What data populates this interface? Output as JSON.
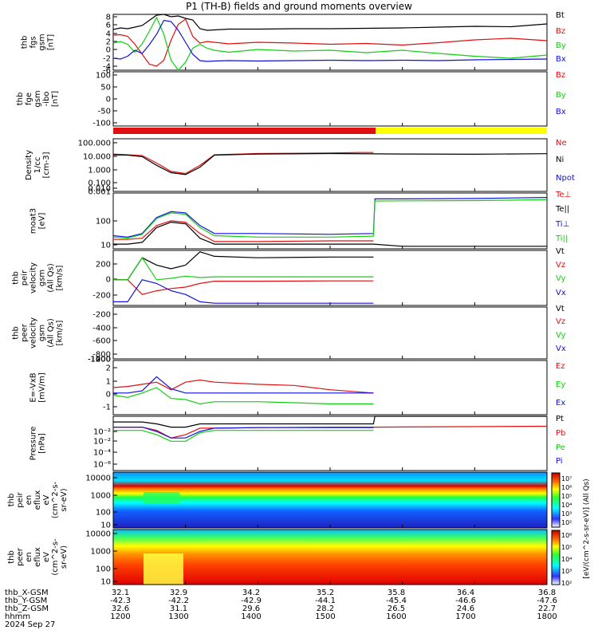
{
  "title": "P1 (TH-B) fields and ground moments overview",
  "colors": {
    "black": "#000000",
    "red": "#e01010",
    "green": "#10d010",
    "blue": "#1010e0",
    "yellow": "#ffff00"
  },
  "chart_data": [
    {
      "type": "line",
      "ylabel": [
        "thb",
        "fgs",
        "gsm",
        "[nT]"
      ],
      "ylim": [
        -6,
        8
      ],
      "ticks": [
        "8",
        "6",
        "4",
        "2",
        "0",
        "-2",
        "-4",
        "-6"
      ],
      "legend": [
        {
          "name": "Bt",
          "color": "#000000"
        },
        {
          "name": "Bz",
          "color": "#e01010"
        },
        {
          "name": "By",
          "color": "#10d010"
        },
        {
          "name": "Bx",
          "color": "#1010e0"
        }
      ],
      "series": [
        {
          "name": "Bt",
          "x": [
            1200,
            1210,
            1220,
            1230,
            1240,
            1250,
            1260,
            1270,
            1280,
            1290,
            1300,
            1310,
            1320,
            1330,
            1340,
            1360,
            1400,
            1450,
            1500,
            1550,
            1600,
            1650,
            1700,
            1750,
            1800
          ],
          "y": [
            4.2,
            4.6,
            4.4,
            4.8,
            5.2,
            6.5,
            7.8,
            8.0,
            7.4,
            7.6,
            7.0,
            6.6,
            4.4,
            4.0,
            4.1,
            4.3,
            4.3,
            4.4,
            4.4,
            4.5,
            4.6,
            4.8,
            5.0,
            4.9,
            5.6
          ]
        },
        {
          "name": "Bz",
          "x": [
            1200,
            1210,
            1220,
            1230,
            1240,
            1250,
            1260,
            1270,
            1280,
            1290,
            1300,
            1310,
            1320,
            1330,
            1340,
            1360,
            1400,
            1450,
            1500,
            1550,
            1600,
            1650,
            1700,
            1750,
            1800
          ],
          "y": [
            2.8,
            2.9,
            2.5,
            0.5,
            -2.0,
            -4.5,
            -5.0,
            -3.5,
            1.5,
            5.5,
            6.8,
            2.5,
            0.8,
            1.2,
            1.0,
            0.6,
            1.0,
            0.8,
            0.5,
            0.7,
            0.3,
            0.9,
            1.6,
            2.0,
            1.4
          ]
        },
        {
          "name": "By",
          "x": [
            1200,
            1210,
            1220,
            1230,
            1240,
            1250,
            1260,
            1270,
            1280,
            1290,
            1300,
            1310,
            1320,
            1330,
            1340,
            1360,
            1400,
            1450,
            1500,
            1550,
            1600,
            1650,
            1700,
            1750,
            1800
          ],
          "y": [
            0.8,
            1.2,
            0.5,
            -1.5,
            0.6,
            3.8,
            7.2,
            3.0,
            -3.5,
            -6.0,
            -4.0,
            -0.5,
            0.5,
            -0.5,
            -1.0,
            -1.5,
            -0.8,
            -1.2,
            -1.0,
            -1.6,
            -1.0,
            -1.8,
            -2.5,
            -3.0,
            -2.2
          ]
        },
        {
          "name": "Bx",
          "x": [
            1200,
            1210,
            1220,
            1230,
            1240,
            1250,
            1260,
            1270,
            1280,
            1290,
            1300,
            1310,
            1320,
            1330,
            1340,
            1360,
            1400,
            1450,
            1500,
            1550,
            1600,
            1650,
            1700,
            1750,
            1800
          ],
          "y": [
            -3.0,
            -3.2,
            -2.5,
            -1.0,
            -1.8,
            0.4,
            3.0,
            6.5,
            6.2,
            4.0,
            1.0,
            -2.0,
            -3.6,
            -3.8,
            -3.7,
            -3.6,
            -3.7,
            -3.6,
            -3.5,
            -3.6,
            -3.5,
            -3.6,
            -3.4,
            -3.3,
            -3.2
          ]
        }
      ]
    },
    {
      "type": "line",
      "ylabel": [
        "thb",
        "fge",
        "gsm",
        "-ibo",
        "[nT]"
      ],
      "ylim": [
        -140,
        100
      ],
      "ticks": [
        "100",
        "50",
        "0",
        "-50",
        "-100"
      ],
      "legend": [
        {
          "name": "Bz",
          "color": "#e01010"
        },
        {
          "name": "By",
          "color": "#10d010"
        },
        {
          "name": "Bx",
          "color": "#1010e0"
        }
      ],
      "series": []
    },
    {
      "type": "line",
      "ylabel": [
        "Density",
        "1/cc",
        "[cm-3]"
      ],
      "scale": "log",
      "ylim": [
        0.001,
        100
      ],
      "ticks": [
        "100.000",
        "10.000",
        "1.000",
        "0.100",
        "0.010",
        "0.001"
      ],
      "legend": [
        {
          "name": "Ne",
          "color": "#e01010"
        },
        {
          "name": "Ni",
          "color": "#000000"
        },
        {
          "name": "Npot",
          "color": "#1010e0"
        }
      ],
      "series": [
        {
          "name": "Ne",
          "x": [
            1200,
            1220,
            1240,
            1260,
            1280,
            1300,
            1320,
            1340,
            1400,
            1500,
            1540,
            1560
          ],
          "y": [
            3.5,
            3.0,
            2.5,
            0.5,
            0.08,
            0.05,
            0.3,
            3.0,
            4.0,
            4.5,
            5.0,
            5.0
          ]
        },
        {
          "name": "Ni",
          "x": [
            1200,
            1220,
            1240,
            1260,
            1280,
            1300,
            1320,
            1340,
            1400,
            1500,
            1600,
            1700,
            1800
          ],
          "y": [
            3.0,
            2.8,
            2.0,
            0.3,
            0.06,
            0.04,
            0.2,
            2.8,
            3.5,
            4.0,
            3.6,
            3.4,
            3.8
          ]
        }
      ]
    },
    {
      "type": "line",
      "ylabel": [
        "moat3",
        "[eV]"
      ],
      "scale": "log",
      "ylim": [
        8,
        1000
      ],
      "ticks": [
        "100",
        "10"
      ],
      "legend": [
        {
          "name": "Te⊥",
          "color": "#e01010"
        },
        {
          "name": "Te||",
          "color": "#000000"
        },
        {
          "name": "Ti⊥",
          "color": "#1010e0"
        },
        {
          "name": "Ti||",
          "color": "#10d010"
        }
      ],
      "series": [
        {
          "name": "Te⊥",
          "x": [
            1200,
            1220,
            1240,
            1260,
            1280,
            1300,
            1320,
            1340,
            1400,
            1500,
            1560
          ],
          "y": [
            18,
            18,
            20,
            60,
            90,
            80,
            30,
            15,
            15,
            16,
            16
          ]
        },
        {
          "name": "Te||",
          "x": [
            1200,
            1220,
            1240,
            1260,
            1280,
            1300,
            1320,
            1340,
            1400,
            1500,
            1560,
            1600,
            1700,
            1800
          ],
          "y": [
            12,
            12,
            14,
            50,
            80,
            70,
            20,
            12,
            12,
            12,
            12,
            10,
            10,
            10
          ]
        },
        {
          "name": "Ti⊥",
          "x": [
            1200,
            1220,
            1240,
            1260,
            1280,
            1300,
            1320,
            1340,
            1400,
            1500,
            1560,
            1562,
            1600,
            1700,
            1800
          ],
          "y": [
            25,
            22,
            30,
            120,
            200,
            180,
            60,
            30,
            30,
            28,
            30,
            600,
            600,
            620,
            680
          ]
        },
        {
          "name": "Ti||",
          "x": [
            1200,
            1220,
            1240,
            1260,
            1280,
            1300,
            1320,
            1340,
            1400,
            1500,
            1560,
            1562,
            1600,
            1700,
            1800
          ],
          "y": [
            22,
            20,
            28,
            110,
            180,
            160,
            50,
            25,
            22,
            22,
            24,
            500,
            510,
            520,
            560
          ]
        }
      ]
    },
    {
      "type": "line",
      "ylabel": [
        "thb",
        "peir",
        "velocity",
        "gsm",
        "(All Qs)",
        "[km/s]"
      ],
      "ylim": [
        -350,
        400
      ],
      "ticks": [
        "200",
        "0",
        "-200"
      ],
      "legend": [
        {
          "name": "Vt",
          "color": "#000000"
        },
        {
          "name": "Vz",
          "color": "#e01010"
        },
        {
          "name": "Vy",
          "color": "#10d010"
        },
        {
          "name": "Vx",
          "color": "#1010e0"
        }
      ],
      "series": [
        {
          "name": "Vt",
          "x": [
            1200,
            1220,
            1240,
            1260,
            1280,
            1300,
            1320,
            1340,
            1400,
            1500,
            1560
          ],
          "y": [
            0,
            0,
            300,
            200,
            150,
            200,
            380,
            320,
            300,
            310,
            310
          ]
        },
        {
          "name": "Vz",
          "x": [
            1200,
            1220,
            1240,
            1260,
            1280,
            1300,
            1320,
            1340,
            1400,
            1500,
            1560
          ],
          "y": [
            0,
            0,
            -200,
            -150,
            -120,
            -100,
            -50,
            -20,
            -20,
            -15,
            -15
          ]
        },
        {
          "name": "Vy",
          "x": [
            1200,
            1220,
            1240,
            1260,
            1280,
            1300,
            1320,
            1340,
            1400,
            1500,
            1560
          ],
          "y": [
            0,
            0,
            300,
            0,
            20,
            50,
            30,
            40,
            40,
            40,
            40
          ]
        },
        {
          "name": "Vx",
          "x": [
            1200,
            1220,
            1240,
            1260,
            1280,
            1300,
            1320,
            1340,
            1400,
            1500,
            1560
          ],
          "y": [
            -300,
            -300,
            0,
            -50,
            -150,
            -200,
            -300,
            -320,
            -320,
            -320,
            -320
          ]
        }
      ]
    },
    {
      "type": "line",
      "ylabel": [
        "thb",
        "peer",
        "velocity",
        "gsm",
        "(All Qs)",
        "[km/s]"
      ],
      "ylim": [
        -1400,
        0
      ],
      "ticks": [
        "-200",
        "-400",
        "-600",
        "-800",
        "-1000",
        "-1200",
        "-1400"
      ],
      "legend": [
        {
          "name": "Vt",
          "color": "#000000"
        },
        {
          "name": "Vz",
          "color": "#e01010"
        },
        {
          "name": "Vy",
          "color": "#10d010"
        },
        {
          "name": "Vx",
          "color": "#1010e0"
        }
      ],
      "series": []
    },
    {
      "type": "line",
      "ylabel": [
        "E=-VxB",
        "[mV/m]"
      ],
      "ylim": [
        -2,
        3
      ],
      "ticks": [
        "2",
        "1",
        "0",
        "-1"
      ],
      "legend": [
        {
          "name": "Ez",
          "color": "#e01010"
        },
        {
          "name": "Ey",
          "color": "#10d010"
        },
        {
          "name": "Ex",
          "color": "#1010e0"
        }
      ],
      "series": [
        {
          "name": "Ez",
          "x": [
            1200,
            1220,
            1240,
            1260,
            1280,
            1300,
            1320,
            1340,
            1400,
            1450,
            1500,
            1560
          ],
          "y": [
            0.5,
            0.6,
            0.8,
            1.0,
            0.3,
            1.0,
            1.2,
            1.0,
            0.8,
            0.7,
            0.3,
            0.0
          ]
        },
        {
          "name": "Ey",
          "x": [
            1200,
            1220,
            1240,
            1260,
            1280,
            1300,
            1320,
            1340,
            1400,
            1450,
            1500,
            1560
          ],
          "y": [
            -0.2,
            -0.4,
            0.0,
            0.5,
            -0.5,
            -0.6,
            -1.0,
            -0.8,
            -0.8,
            -0.9,
            -1.0,
            -1.0
          ]
        },
        {
          "name": "Ex",
          "x": [
            1200,
            1220,
            1240,
            1260,
            1280,
            1300,
            1320,
            1340,
            1400,
            1450,
            1500,
            1560
          ],
          "y": [
            0.0,
            0.0,
            0.2,
            1.5,
            0.4,
            0.0,
            0.0,
            0.0,
            0.0,
            0.0,
            0.0,
            0.0
          ]
        }
      ]
    },
    {
      "type": "line",
      "ylabel": [
        "Pressure",
        "[nPa]"
      ],
      "scale": "log",
      "ylim": [
        1e-06,
        0.1
      ],
      "ticks": [
        "10⁻²",
        "10⁻²",
        "10⁻⁴",
        "10⁻⁶"
      ],
      "legend": [
        {
          "name": "Pt",
          "color": "#000000"
        },
        {
          "name": "Pb",
          "color": "#e01010"
        },
        {
          "name": "Pe",
          "color": "#10d010"
        },
        {
          "name": "Pi",
          "color": "#1010e0"
        }
      ],
      "series": [
        {
          "name": "Pt",
          "x": [
            1200,
            1240,
            1260,
            1280,
            1300,
            1320,
            1340,
            1400,
            1500,
            1560,
            1562,
            1800
          ],
          "y": [
            0.03,
            0.03,
            0.02,
            0.01,
            0.01,
            0.02,
            0.02,
            0.02,
            0.02,
            0.02,
            0.1,
            0.1
          ]
        },
        {
          "name": "Pb",
          "x": [
            1200,
            1240,
            1260,
            1280,
            1300,
            1320,
            1340,
            1400,
            1500,
            1560,
            1800
          ],
          "y": [
            0.01,
            0.01,
            0.005,
            0.001,
            0.002,
            0.008,
            0.008,
            0.009,
            0.01,
            0.01,
            0.012
          ]
        },
        {
          "name": "Pe",
          "x": [
            1200,
            1240,
            1260,
            1280,
            1300,
            1320,
            1340,
            1400,
            1500,
            1560
          ],
          "y": [
            0.005,
            0.005,
            0.002,
            0.0005,
            0.0005,
            0.003,
            0.005,
            0.005,
            0.005,
            0.005
          ]
        },
        {
          "name": "Pi",
          "x": [
            1200,
            1240,
            1260,
            1280,
            1300,
            1320,
            1340,
            1400,
            1500,
            1560
          ],
          "y": [
            0.01,
            0.01,
            0.004,
            0.001,
            0.001,
            0.004,
            0.008,
            0.009,
            0.009,
            0.009
          ]
        }
      ]
    },
    {
      "type": "heatmap",
      "ylabel": [
        "thb",
        "peir",
        "en",
        "eflux",
        "eV",
        "(cm^2-s-",
        "sr-eV)"
      ],
      "ticks": [
        "10000",
        "1000",
        "100",
        "10"
      ]
    },
    {
      "type": "heatmap",
      "ylabel": [
        "thb",
        "peer",
        "en",
        "eflux",
        "eV",
        "(cm^2-s-",
        "sr-eV)"
      ],
      "ticks": [
        "10000",
        "1000",
        "100",
        "10"
      ]
    }
  ],
  "colorbar": {
    "ticks": [
      "10⁷",
      "10⁶",
      "10⁵",
      "10⁴",
      "10³",
      "10²",
      "10⁶",
      "10⁵",
      "10⁴",
      "10³",
      "10²"
    ],
    "label": "[eV/(cm^2-s-sr-eV)] (All Qs)"
  },
  "xaxis": {
    "row_labels": [
      "thb_X-GSM",
      "thb_Y-GSM",
      "thb_Z-GSM",
      "hhmm",
      "2024 Sep 27"
    ],
    "columns": [
      {
        "x": "32.1",
        "y": "-42.3",
        "z": "32.6",
        "t": "1200"
      },
      {
        "x": "32.9",
        "y": "-42.2",
        "z": "31.1",
        "t": "1300"
      },
      {
        "x": "34.2",
        "y": "-42.9",
        "z": "29.6",
        "t": "1400"
      },
      {
        "x": "35.2",
        "y": "-44.1",
        "z": "28.2",
        "t": "1500"
      },
      {
        "x": "35.8",
        "y": "-45.4",
        "z": "26.5",
        "t": "1600"
      },
      {
        "x": "36.4",
        "y": "-46.6",
        "z": "24.6",
        "t": "1700"
      },
      {
        "x": "36.8",
        "y": "-47.6",
        "z": "22.7",
        "t": "1800"
      }
    ]
  }
}
